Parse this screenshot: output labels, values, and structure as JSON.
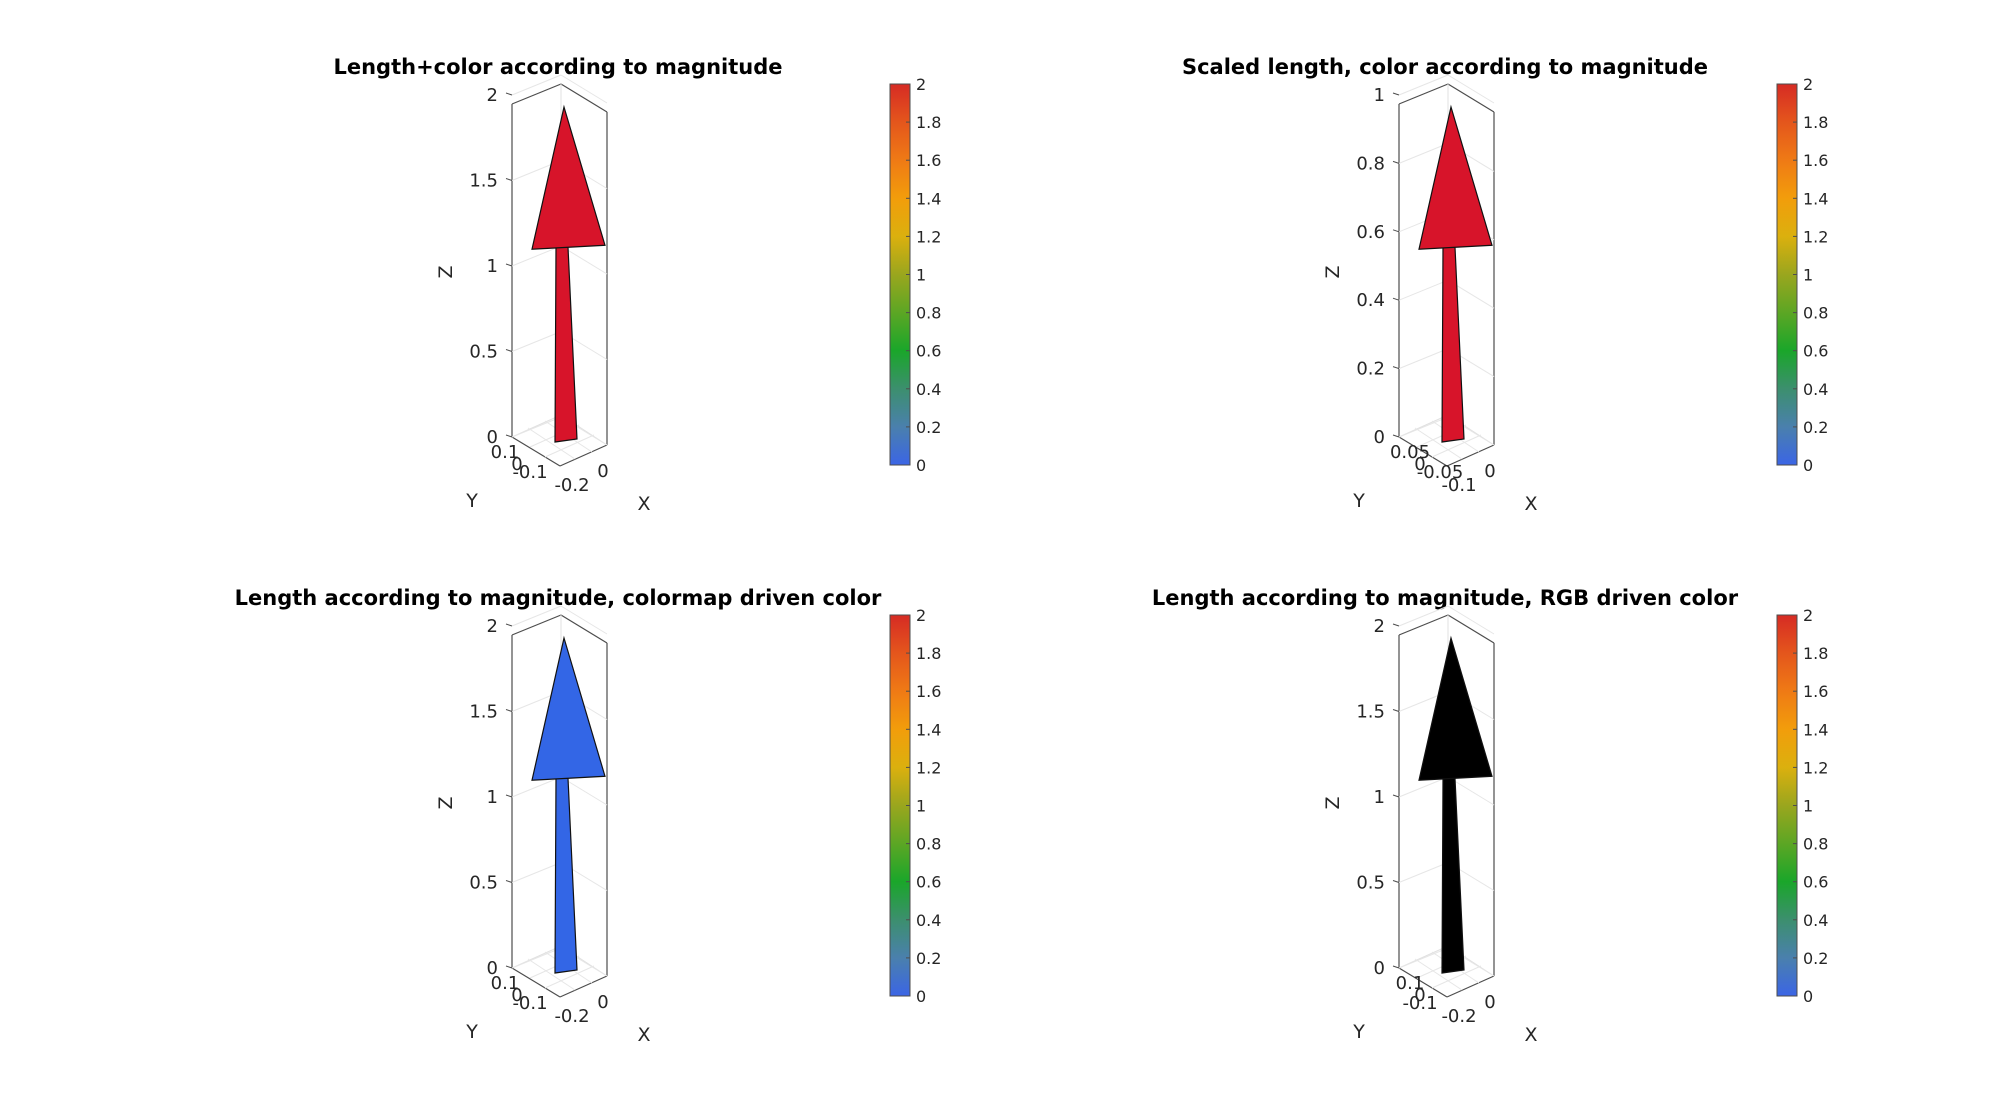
{
  "chart_data": [
    {
      "type": "quiver3d",
      "title": "Length+color according to magnitude",
      "xlabel": "X",
      "ylabel": "Y",
      "zlabel": "Z",
      "x_ticks": [
        "0",
        "-0.2"
      ],
      "y_ticks": [
        "0.1",
        "0",
        "-0.1"
      ],
      "z_ticks": [
        "0",
        "0.5",
        "1",
        "1.5",
        "2"
      ],
      "zlim": [
        0,
        2
      ],
      "arrow": {
        "base": [
          0,
          0,
          0
        ],
        "vector": [
          0,
          0,
          2
        ],
        "magnitude": 2,
        "color": "#d7142a"
      },
      "colorbar": {
        "ticks": [
          "0",
          "0.2",
          "0.4",
          "0.6",
          "0.8",
          "1",
          "1.2",
          "1.4",
          "1.6",
          "1.8",
          "2"
        ],
        "range": [
          0,
          2
        ]
      }
    },
    {
      "type": "quiver3d",
      "title": "Scaled length, color according to magnitude",
      "xlabel": "X",
      "ylabel": "Y",
      "zlabel": "Z",
      "x_ticks": [
        "0",
        "-0.1"
      ],
      "y_ticks": [
        "0.05",
        "0",
        "-0.05"
      ],
      "z_ticks": [
        "0",
        "0.2",
        "0.4",
        "0.6",
        "0.8",
        "1"
      ],
      "zlim": [
        0,
        1
      ],
      "arrow": {
        "base": [
          0,
          0,
          0
        ],
        "vector": [
          0,
          0,
          1
        ],
        "magnitude": 2,
        "color": "#d7142a"
      },
      "colorbar": {
        "ticks": [
          "0",
          "0.2",
          "0.4",
          "0.6",
          "0.8",
          "1",
          "1.2",
          "1.4",
          "1.6",
          "1.8",
          "2"
        ],
        "range": [
          0,
          2
        ]
      }
    },
    {
      "type": "quiver3d",
      "title": "Length according to magnitude, colormap driven color",
      "xlabel": "X",
      "ylabel": "Y",
      "zlabel": "Z",
      "x_ticks": [
        "0",
        "-0.2"
      ],
      "y_ticks": [
        "0.1",
        "0",
        "-0.1"
      ],
      "z_ticks": [
        "0",
        "0.5",
        "1",
        "1.5",
        "2"
      ],
      "zlim": [
        0,
        2
      ],
      "arrow": {
        "base": [
          0,
          0,
          0
        ],
        "vector": [
          0,
          0,
          2
        ],
        "magnitude": 2,
        "color": "#3366e6"
      },
      "colorbar": {
        "ticks": [
          "0",
          "0.2",
          "0.4",
          "0.6",
          "0.8",
          "1",
          "1.2",
          "1.4",
          "1.6",
          "1.8",
          "2"
        ],
        "range": [
          0,
          2
        ]
      }
    },
    {
      "type": "quiver3d",
      "title": "Length according to magnitude, RGB driven color",
      "xlabel": "X",
      "ylabel": "Y",
      "zlabel": "Z",
      "x_ticks": [
        "0",
        "-0.2"
      ],
      "y_ticks": [
        "0.1",
        "0",
        "-0.1"
      ],
      "z_ticks": [
        "0",
        "0.5",
        "1",
        "1.5",
        "2"
      ],
      "zlim": [
        0,
        2
      ],
      "arrow": {
        "base": [
          0,
          0,
          0
        ],
        "vector": [
          0,
          0,
          2
        ],
        "magnitude": 2,
        "color": "#000000"
      },
      "colorbar": {
        "ticks": [
          "0",
          "0.2",
          "0.4",
          "0.6",
          "0.8",
          "1",
          "1.2",
          "1.4",
          "1.6",
          "1.8",
          "2"
        ],
        "range": [
          0,
          2
        ]
      }
    }
  ],
  "colormap": [
    "#3b65e5",
    "#4a80ad",
    "#3c8f6e",
    "#1aa62a",
    "#5ca624",
    "#9aa61e",
    "#dbb00e",
    "#f29d0b",
    "#ef7a15",
    "#e4561c",
    "#d62b24"
  ]
}
